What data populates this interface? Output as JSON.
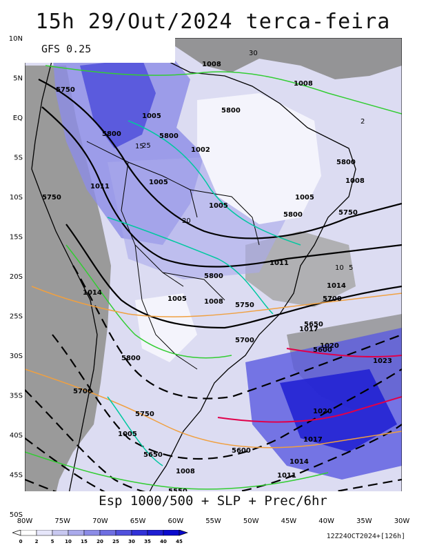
{
  "title": "15h 29/Out/2024 terca-feira",
  "model_label": "GFS 0.25",
  "bottom_label": "Esp 1000/500 + SLP + Prec/6hr",
  "run_info": "12Z24OCT2024+[126h]",
  "lat_labels": [
    "10N",
    "5N",
    "EQ",
    "5S",
    "10S",
    "15S",
    "20S",
    "25S",
    "30S",
    "35S",
    "40S",
    "45S",
    "50S"
  ],
  "lon_labels": [
    "80W",
    "75W",
    "70W",
    "65W",
    "60W",
    "55W",
    "50W",
    "45W",
    "40W",
    "35W",
    "30W"
  ],
  "colorbar": {
    "ticks": [
      "0",
      "2",
      "5",
      "10",
      "15",
      "20",
      "25",
      "30",
      "35",
      "40",
      "45"
    ],
    "colors": [
      "#ffffff",
      "#e6e6fa",
      "#c8c8f0",
      "#aaaaeb",
      "#8c8ce6",
      "#6e6ee1",
      "#5050dc",
      "#3232d7",
      "#1e1ed2",
      "#0a0acd"
    ]
  },
  "contour_colors": {
    "thickness": "#000000",
    "slp_low": "#00c8a0",
    "slp_mid": "#32cd32",
    "slp_high": "#f0a040",
    "slp_very_high": "#e0004a",
    "coast": "#000000"
  },
  "thickness_labels": [
    "5800",
    "5800",
    "5800",
    "5750",
    "5750",
    "5700",
    "5650",
    "5600",
    "5550",
    "5600",
    "5700",
    "5750",
    "5800",
    "5800",
    "5750",
    "5800",
    "5700",
    "5650",
    "5600",
    "5550"
  ],
  "slp_labels": [
    "1008",
    "1008",
    "1005",
    "1005",
    "1005",
    "1005",
    "1011",
    "1014",
    "1011",
    "1008",
    "1005",
    "1002",
    "1008",
    "1011",
    "1014",
    "1017",
    "1020",
    "1023",
    "1020",
    "1017",
    "1014",
    "1011",
    "1008",
    "1005"
  ],
  "precip_labels": [
    "30",
    "25",
    "20",
    "15",
    "10",
    "5",
    "2"
  ]
}
